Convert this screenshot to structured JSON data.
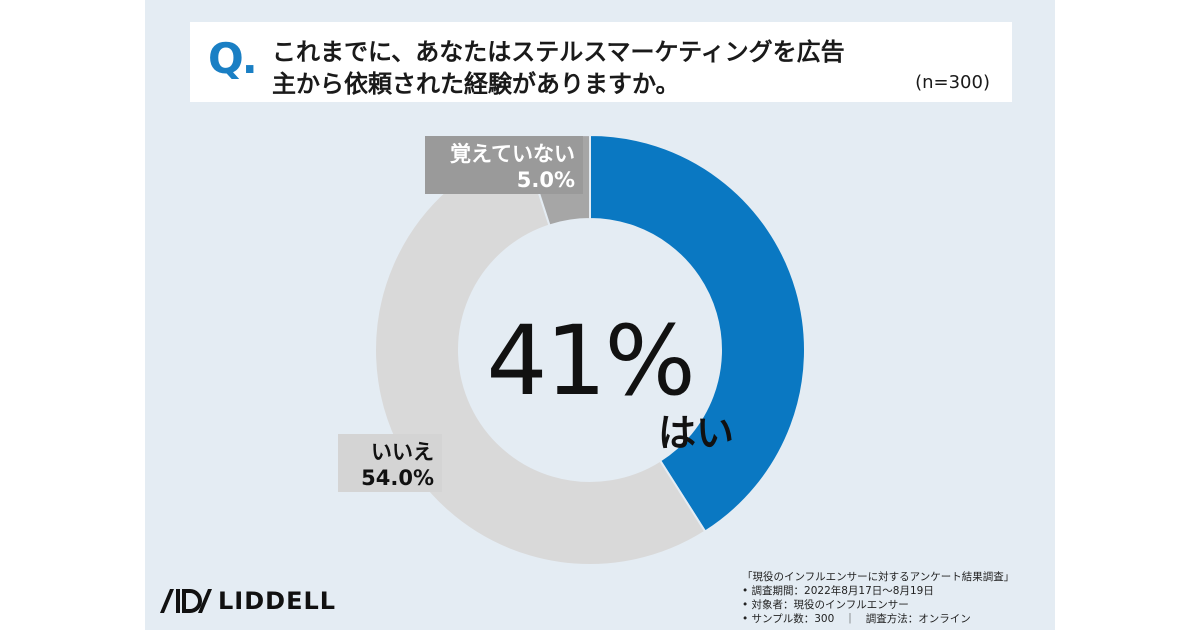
{
  "question": {
    "prefix": "Q.",
    "line1": "これまでに、あなたはステルスマーケティングを広告",
    "line2": "主から依頼された経験がありますか。",
    "n": "(n=300)"
  },
  "center_value": "41%",
  "labels": {
    "yes": "はい",
    "no_name": "いいえ",
    "no_value": "54.0%",
    "dontknow_name": "覚えていない",
    "dontknow_value": "5.0%"
  },
  "logo_text": "LIDDELL",
  "survey": {
    "title": "「現役のインフルエンサーに対するアンケート結果調査」",
    "period": "• 調査期間：2022年8月17日〜8月19日",
    "target": "• 対象者：現役のインフルエンサー",
    "sample": "• サンプル数：300　｜　調査方法：オンライン"
  },
  "colors": {
    "yes": "#0a78c2",
    "no": "#d9d9d9",
    "dontknow": "#a6a6a6",
    "background": "#e4ecf3",
    "accent": "#1a7fc4"
  },
  "chart_data": {
    "type": "pie",
    "title": "",
    "categories": [
      "はい",
      "いいえ",
      "覚えていない"
    ],
    "values": [
      41.0,
      54.0,
      5.0
    ]
  }
}
